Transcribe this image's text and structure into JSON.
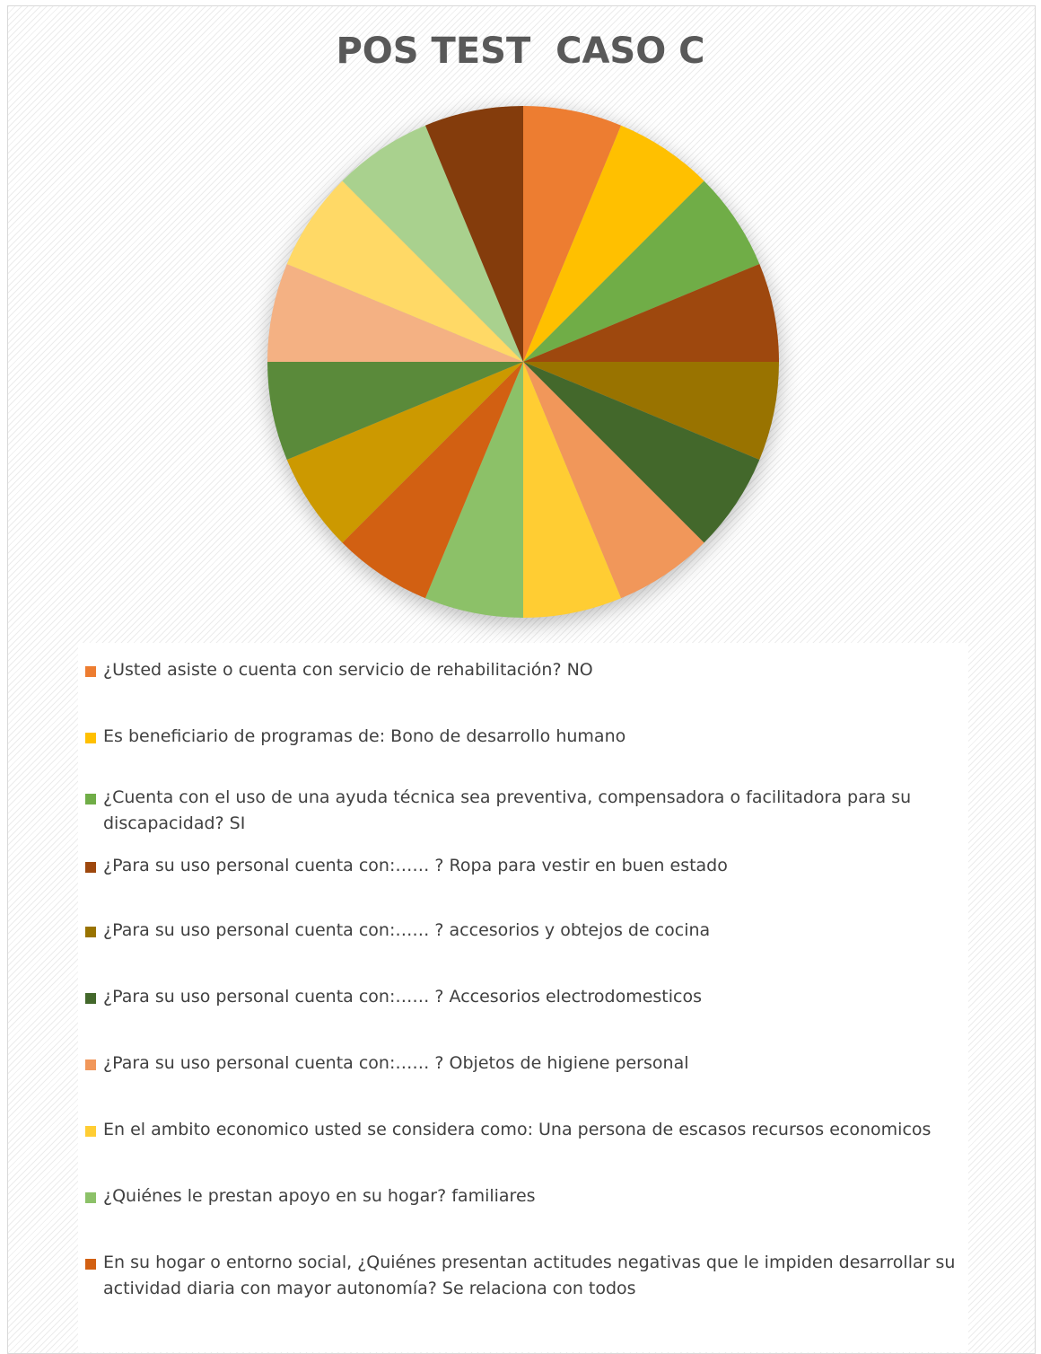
{
  "chart_data": {
    "type": "pie",
    "title": "POS TEST  CASO C",
    "slices": [
      {
        "label": "¿Usted asiste o cuenta con servicio de rehabilitación? NO",
        "value": 1,
        "color": "#ED7D31"
      },
      {
        "label": "Es beneficiario de programas de: Bono de desarrollo humano",
        "value": 1,
        "color": "#FFC000"
      },
      {
        "label": "¿Cuenta con el uso de una ayuda técnica sea preventiva, compensadora o facilitadora para su discapacidad? SI",
        "value": 1,
        "color": "#70AD47"
      },
      {
        "label": "¿Para su uso personal cuenta con:…… ? Ropa para vestir en buen estado",
        "value": 1,
        "color": "#9E480E"
      },
      {
        "label": "¿Para su uso personal cuenta con:…… ? accesorios y obtejos de cocina",
        "value": 1,
        "color": "#997300"
      },
      {
        "label": "¿Para su uso personal cuenta con:…… ? Accesorios electrodomesticos",
        "value": 1,
        "color": "#43682B"
      },
      {
        "label": "¿Para su uso personal cuenta con:…… ? Objetos de higiene personal",
        "value": 1,
        "color": "#F1975A"
      },
      {
        "label": "En el ambito economico usted se considera como: Una persona de escasos recursos economicos",
        "value": 1,
        "color": "#FFCD33"
      },
      {
        "label": "¿Quiénes le prestan apoyo en su hogar? familiares",
        "value": 1,
        "color": "#8CC168"
      },
      {
        "label": "En su hogar o entorno social, ¿Quiénes presentan actitudes negativas que le impiden desarrollar su actividad diaria con mayor autonomía? Se relaciona con todos",
        "value": 1,
        "color": "#D26012"
      },
      {
        "label": "",
        "value": 1,
        "color": "#CC9900"
      },
      {
        "label": "",
        "value": 1,
        "color": "#5A8A3A"
      },
      {
        "label": "",
        "value": 1,
        "color": "#F4B183"
      },
      {
        "label": "",
        "value": 1,
        "color": "#FFD966"
      },
      {
        "label": "",
        "value": 1,
        "color": "#A9D18E"
      },
      {
        "label": "",
        "value": 1,
        "color": "#843C0C"
      }
    ],
    "legend_position": "bottom"
  }
}
